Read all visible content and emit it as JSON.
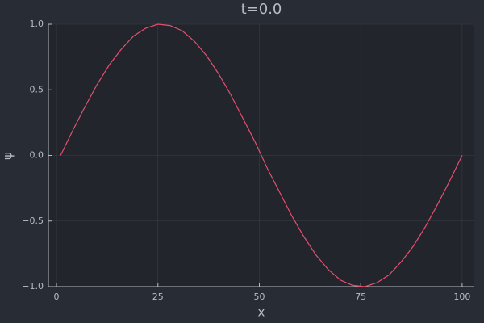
{
  "chart_data": {
    "type": "line",
    "title": "t=0.0",
    "x_label": "x",
    "y_label": "ψ",
    "x": [
      1,
      4,
      7,
      10,
      13,
      16,
      19,
      22,
      25,
      28,
      31,
      34,
      37,
      40,
      43,
      46,
      49,
      52,
      55,
      58,
      61,
      64,
      67,
      70,
      73,
      76,
      79,
      82,
      85,
      88,
      91,
      94,
      97,
      100
    ],
    "values": [
      0,
      0.19,
      0.37,
      0.54,
      0.69,
      0.81,
      0.91,
      0.97,
      1.0,
      0.99,
      0.95,
      0.87,
      0.76,
      0.62,
      0.46,
      0.28,
      0.1,
      -0.1,
      -0.28,
      -0.46,
      -0.62,
      -0.76,
      -0.87,
      -0.95,
      -0.99,
      -1.0,
      -0.97,
      -0.91,
      -0.81,
      -0.69,
      -0.54,
      -0.37,
      -0.19,
      0
    ],
    "color": "#e5506f",
    "xlim": [
      -2,
      103
    ],
    "xticks": [
      0,
      25,
      50,
      75,
      100
    ],
    "ylim": [
      -1,
      1
    ],
    "yticks": [
      {
        "value": -1,
        "label": "−1.0"
      },
      {
        "value": -0.5,
        "label": "−0.5"
      },
      {
        "value": 0,
        "label": "0.0"
      },
      {
        "value": 0.5,
        "label": "0.5"
      },
      {
        "value": 1,
        "label": "1.0"
      }
    ],
    "grid": true
  }
}
